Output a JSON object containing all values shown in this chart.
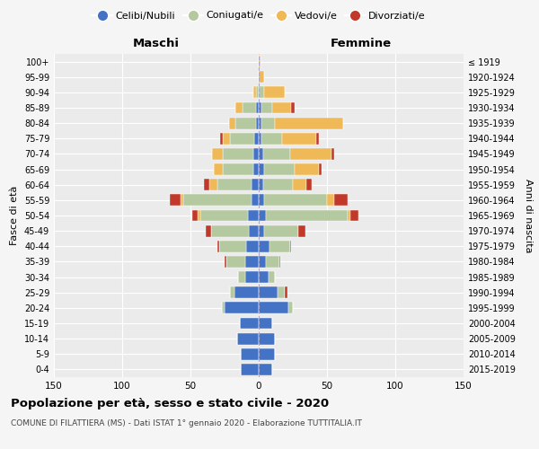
{
  "age_groups": [
    "0-4",
    "5-9",
    "10-14",
    "15-19",
    "20-24",
    "25-29",
    "30-34",
    "35-39",
    "40-44",
    "45-49",
    "50-54",
    "55-59",
    "60-64",
    "65-69",
    "70-74",
    "75-79",
    "80-84",
    "85-89",
    "90-94",
    "95-99",
    "100+"
  ],
  "birth_years": [
    "2015-2019",
    "2010-2014",
    "2005-2009",
    "2000-2004",
    "1995-1999",
    "1990-1994",
    "1985-1989",
    "1980-1984",
    "1975-1979",
    "1970-1974",
    "1965-1969",
    "1960-1964",
    "1955-1959",
    "1950-1954",
    "1945-1949",
    "1940-1944",
    "1935-1939",
    "1930-1934",
    "1925-1929",
    "1920-1924",
    "≤ 1919"
  ],
  "male": {
    "single": [
      13,
      13,
      16,
      14,
      25,
      18,
      10,
      10,
      9,
      7,
      8,
      5,
      5,
      4,
      4,
      3,
      2,
      2,
      0,
      0,
      0
    ],
    "married": [
      0,
      0,
      0,
      0,
      2,
      3,
      5,
      14,
      20,
      28,
      35,
      50,
      25,
      22,
      22,
      18,
      15,
      10,
      2,
      0,
      0
    ],
    "widowed": [
      0,
      0,
      0,
      0,
      0,
      0,
      0,
      0,
      0,
      0,
      2,
      2,
      6,
      7,
      8,
      5,
      5,
      5,
      2,
      0,
      0
    ],
    "divorced": [
      0,
      0,
      0,
      0,
      0,
      0,
      0,
      1,
      1,
      4,
      4,
      8,
      4,
      0,
      0,
      2,
      0,
      0,
      0,
      0,
      0
    ]
  },
  "female": {
    "single": [
      10,
      12,
      12,
      10,
      22,
      14,
      7,
      5,
      8,
      4,
      5,
      4,
      3,
      4,
      3,
      2,
      2,
      2,
      0,
      0,
      0
    ],
    "married": [
      0,
      0,
      0,
      0,
      3,
      5,
      5,
      10,
      15,
      25,
      60,
      46,
      22,
      22,
      20,
      15,
      10,
      8,
      4,
      0,
      0
    ],
    "widowed": [
      0,
      0,
      0,
      0,
      0,
      0,
      0,
      0,
      0,
      0,
      2,
      5,
      10,
      18,
      30,
      25,
      50,
      14,
      15,
      4,
      1
    ],
    "divorced": [
      0,
      0,
      0,
      0,
      0,
      2,
      0,
      1,
      1,
      5,
      6,
      10,
      4,
      2,
      2,
      2,
      0,
      2,
      0,
      0,
      0
    ]
  },
  "colors": {
    "single": "#4472c4",
    "married": "#b5c9a0",
    "widowed": "#f0b957",
    "divorced": "#c0392b"
  },
  "title": "Popolazione per età, sesso e stato civile - 2020",
  "subtitle": "COMUNE DI FILATTIERA (MS) - Dati ISTAT 1° gennaio 2020 - Elaborazione TUTTITALIA.IT",
  "xlabel_left": "Maschi",
  "xlabel_right": "Femmine",
  "ylabel_left": "Fasce di età",
  "ylabel_right": "Anni di nascita",
  "xlim": 150,
  "bg_color": "#f5f5f5",
  "plot_bg": "#ebebeb",
  "grid_color": "#ffffff",
  "legend_labels": [
    "Celibi/Nubili",
    "Coniugati/e",
    "Vedovi/e",
    "Divorziati/e"
  ]
}
